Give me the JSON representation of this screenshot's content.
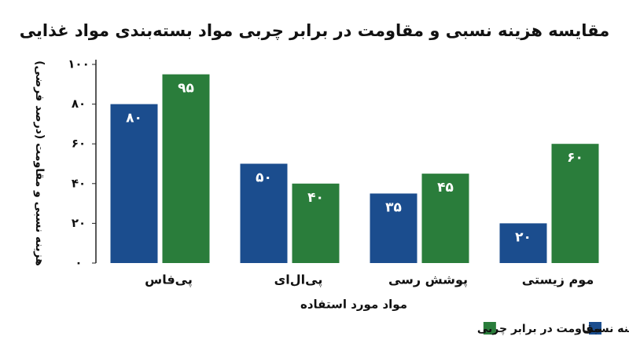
{
  "chart_data": {
    "type": "bar",
    "title": "مقایسه هزینه نسبی و مقاومت در برابر چربی مواد بسته‌بندی مواد غذایی",
    "x_label": "مواد مورد استفاده",
    "y_label": "هزینه نسبی و مقاومت (درصد فرضی)",
    "categories": [
      "پی‌فاس",
      "پی‌ال‌ای",
      "پوشش رسی",
      "موم زیستی"
    ],
    "series": [
      {
        "name": "هزینه نسبی",
        "color": "#1b4d8e",
        "values": [
          80,
          50,
          35,
          20
        ],
        "value_labels": [
          "۸۰",
          "۵۰",
          "۳۵",
          "۲۰"
        ]
      },
      {
        "name": "مقاومت در برابر چربی",
        "color": "#2a7d3b",
        "values": [
          95,
          40,
          45,
          60
        ],
        "value_labels": [
          "۹۵",
          "۴۰",
          "۴۵",
          "۶۰"
        ]
      }
    ],
    "ylim": [
      0,
      100
    ],
    "yticks": [
      {
        "value": 0,
        "label": "۰"
      },
      {
        "value": 20,
        "label": "۲۰"
      },
      {
        "value": 40,
        "label": "۴۰"
      },
      {
        "value": 60,
        "label": "۶۰"
      },
      {
        "value": 80,
        "label": "۸۰"
      },
      {
        "value": 100,
        "label": "۱۰۰"
      }
    ],
    "legend": "bottom-right"
  }
}
